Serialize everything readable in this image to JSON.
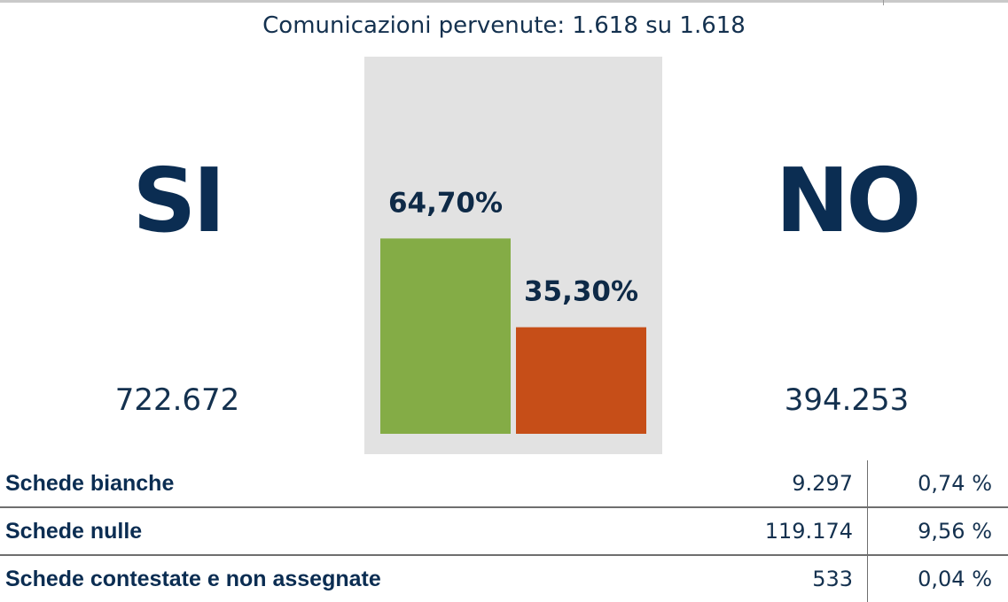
{
  "header": {
    "communications": "Comunicazioni pervenute: 1.618 su 1.618"
  },
  "result": {
    "yes": {
      "label": "SI",
      "votes": "722.672",
      "percent_label": "64,70%",
      "color": "#84ac46"
    },
    "no": {
      "label": "NO",
      "votes": "394.253",
      "percent_label": "35,30%",
      "color": "#c64e18"
    }
  },
  "chart_data": {
    "type": "bar",
    "categories": [
      "SI",
      "NO"
    ],
    "values": [
      64.7,
      35.3
    ],
    "data_labels": [
      "64,70%",
      "35,30%"
    ],
    "colors": [
      "#84ac46",
      "#c64e18"
    ],
    "ylim": [
      0,
      100
    ],
    "background": "#e2e2e2",
    "grid": false,
    "legend": "none"
  },
  "summary": {
    "rows": [
      {
        "label": "Schede bianche",
        "count": "9.297",
        "percent": "0,74 %"
      },
      {
        "label": "Schede nulle",
        "count": "119.174",
        "percent": "9,56 %"
      },
      {
        "label": "Schede contestate e non assegnate",
        "count": "533",
        "percent": "0,04 %"
      }
    ]
  }
}
